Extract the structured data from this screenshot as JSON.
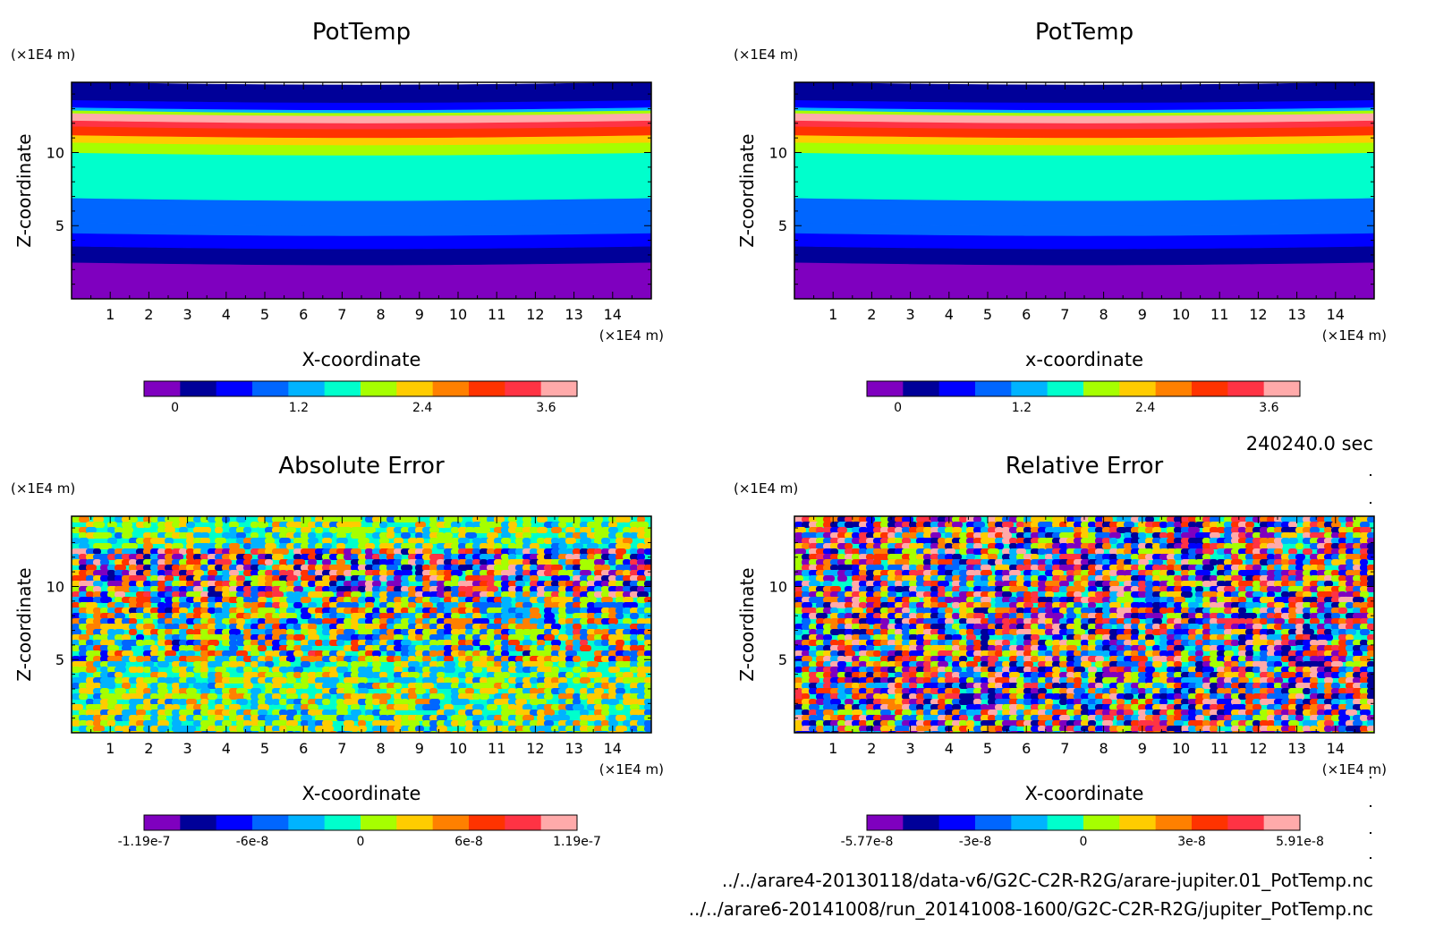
{
  "time_label": "240240.0 sec",
  "footer": {
    "file1": "../../arare4-20130118/data-v6/G2C-C2R-R2G/arare-jupiter.01_PotTemp.nc",
    "file2": "../../arare6-20141008/run_20141008-1600/G2C-C2R-R2G/jupiter_PotTemp.nc"
  },
  "panels": [
    {
      "title": "PotTemp",
      "xlabel": "X-coordinate",
      "ylabel": "Z-coordinate",
      "unit_y": "(×1E4 m)",
      "unit_x": "(×1E4 m)"
    },
    {
      "title": "PotTemp",
      "xlabel": "x-coordinate",
      "ylabel": "Z-coordinate",
      "unit_y": "(×1E4 m)",
      "unit_x": "(×1E4 m)"
    },
    {
      "title": "Absolute Error",
      "xlabel": "X-coordinate",
      "ylabel": "Z-coordinate",
      "unit_y": "(×1E4 m)",
      "unit_x": "(×1E4 m)"
    },
    {
      "title": "Relative Error",
      "xlabel": "X-coordinate",
      "ylabel": "Z-coordinate",
      "unit_y": "(×1E4 m)",
      "unit_x": "(×1E4 m)"
    }
  ],
  "chart_data": [
    {
      "type": "heatmap",
      "title": "PotTemp",
      "xlabel": "X-coordinate",
      "ylabel": "Z-coordinate",
      "xlim": [
        0,
        15
      ],
      "ylim": [
        0,
        14.8
      ],
      "x_ticks": [
        "1",
        "2",
        "3",
        "4",
        "5",
        "6",
        "7",
        "8",
        "9",
        "10",
        "11",
        "12",
        "13",
        "14"
      ],
      "y_ticks": [
        "5",
        "10"
      ],
      "colorbar_ticks": [
        "0",
        "1.2",
        "2.4",
        "3.6"
      ],
      "colorbar_range": [
        -0.3,
        3.9
      ],
      "field": "layered",
      "layers": [
        {
          "z_from": 0.0,
          "z_to": 2.5,
          "value": 0.0
        },
        {
          "z_from": 2.5,
          "z_to": 3.6,
          "value": 0.15
        },
        {
          "z_from": 3.6,
          "z_to": 4.5,
          "value": 0.45
        },
        {
          "z_from": 4.5,
          "z_to": 5.2,
          "value": 0.75
        },
        {
          "z_from": 5.2,
          "z_to": 6.9,
          "value": 1.05
        },
        {
          "z_from": 6.9,
          "z_to": 10.0,
          "value": 1.65
        },
        {
          "z_from": 10.0,
          "z_to": 10.7,
          "value": 2.0
        },
        {
          "z_from": 10.7,
          "z_to": 11.2,
          "value": 2.3
        },
        {
          "z_from": 11.2,
          "z_to": 11.8,
          "value": 2.9
        },
        {
          "z_from": 11.8,
          "z_to": 12.2,
          "value": 3.5
        },
        {
          "z_from": 12.2,
          "z_to": 12.7,
          "value": 3.8
        },
        {
          "z_from": 12.7,
          "z_to": 12.9,
          "value": 2.0
        },
        {
          "z_from": 12.9,
          "z_to": 13.1,
          "value": 1.2
        },
        {
          "z_from": 13.1,
          "z_to": 13.6,
          "value": 0.4
        },
        {
          "z_from": 13.6,
          "z_to": 14.8,
          "value": 0.1
        }
      ]
    },
    {
      "type": "heatmap",
      "title": "PotTemp",
      "xlabel": "x-coordinate",
      "ylabel": "Z-coordinate",
      "xlim": [
        0,
        15
      ],
      "ylim": [
        0,
        14.8
      ],
      "x_ticks": [
        "1",
        "2",
        "3",
        "4",
        "5",
        "6",
        "7",
        "8",
        "9",
        "10",
        "11",
        "12",
        "13",
        "14"
      ],
      "y_ticks": [
        "5",
        "10"
      ],
      "colorbar_ticks": [
        "0",
        "1.2",
        "2.4",
        "3.6"
      ],
      "colorbar_range": [
        -0.3,
        3.9
      ],
      "field": "layered",
      "layers": [
        {
          "z_from": 0.0,
          "z_to": 2.5,
          "value": 0.0
        },
        {
          "z_from": 2.5,
          "z_to": 3.6,
          "value": 0.15
        },
        {
          "z_from": 3.6,
          "z_to": 4.5,
          "value": 0.45
        },
        {
          "z_from": 4.5,
          "z_to": 5.2,
          "value": 0.75
        },
        {
          "z_from": 5.2,
          "z_to": 6.9,
          "value": 1.05
        },
        {
          "z_from": 6.9,
          "z_to": 10.0,
          "value": 1.65
        },
        {
          "z_from": 10.0,
          "z_to": 10.7,
          "value": 2.0
        },
        {
          "z_from": 10.7,
          "z_to": 11.2,
          "value": 2.3
        },
        {
          "z_from": 11.2,
          "z_to": 11.8,
          "value": 2.9
        },
        {
          "z_from": 11.8,
          "z_to": 12.2,
          "value": 3.5
        },
        {
          "z_from": 12.2,
          "z_to": 12.7,
          "value": 3.8
        },
        {
          "z_from": 12.7,
          "z_to": 12.9,
          "value": 2.0
        },
        {
          "z_from": 12.9,
          "z_to": 13.1,
          "value": 1.2
        },
        {
          "z_from": 13.1,
          "z_to": 13.6,
          "value": 0.4
        },
        {
          "z_from": 13.6,
          "z_to": 14.8,
          "value": 0.1
        }
      ]
    },
    {
      "type": "heatmap",
      "title": "Absolute Error",
      "xlabel": "X-coordinate",
      "ylabel": "Z-coordinate",
      "xlim": [
        0,
        15
      ],
      "ylim": [
        0,
        14.8
      ],
      "x_ticks": [
        "1",
        "2",
        "3",
        "4",
        "5",
        "6",
        "7",
        "8",
        "9",
        "10",
        "11",
        "12",
        "13",
        "14"
      ],
      "y_ticks": [
        "5",
        "10"
      ],
      "colorbar_ticks": [
        "-1.19e-7",
        "-6e-8",
        "0",
        "6e-8",
        "1.19e-7"
      ],
      "colorbar_range": [
        -1.19e-07,
        1.19e-07
      ],
      "field": "noise",
      "noise_bands": [
        {
          "z_from": 0.0,
          "z_to": 5.0,
          "amplitude": 0.35
        },
        {
          "z_from": 5.0,
          "z_to": 9.5,
          "amplitude": 0.6
        },
        {
          "z_from": 9.5,
          "z_to": 12.8,
          "amplitude": 1.0
        },
        {
          "z_from": 12.8,
          "z_to": 14.8,
          "amplitude": 0.3
        }
      ]
    },
    {
      "type": "heatmap",
      "title": "Relative Error",
      "xlabel": "X-coordinate",
      "ylabel": "Z-coordinate",
      "xlim": [
        0,
        15
      ],
      "ylim": [
        0,
        14.8
      ],
      "x_ticks": [
        "1",
        "2",
        "3",
        "4",
        "5",
        "6",
        "7",
        "8",
        "9",
        "10",
        "11",
        "12",
        "13",
        "14"
      ],
      "y_ticks": [
        "5",
        "10"
      ],
      "colorbar_ticks": [
        "-5.77e-8",
        "-3e-8",
        "0",
        "3e-8",
        "5.91e-8"
      ],
      "colorbar_range": [
        -5.77e-08,
        5.91e-08
      ],
      "field": "noise",
      "noise_bands": [
        {
          "z_from": 0.0,
          "z_to": 14.8,
          "amplitude": 1.0
        }
      ]
    }
  ],
  "colormap": [
    "#7f00bf",
    "#000099",
    "#0000ff",
    "#0066ff",
    "#00b3ff",
    "#00ffcc",
    "#a6ff00",
    "#ffcc00",
    "#ff8000",
    "#ff3300",
    "#ff3344",
    "#ffaaaa"
  ]
}
